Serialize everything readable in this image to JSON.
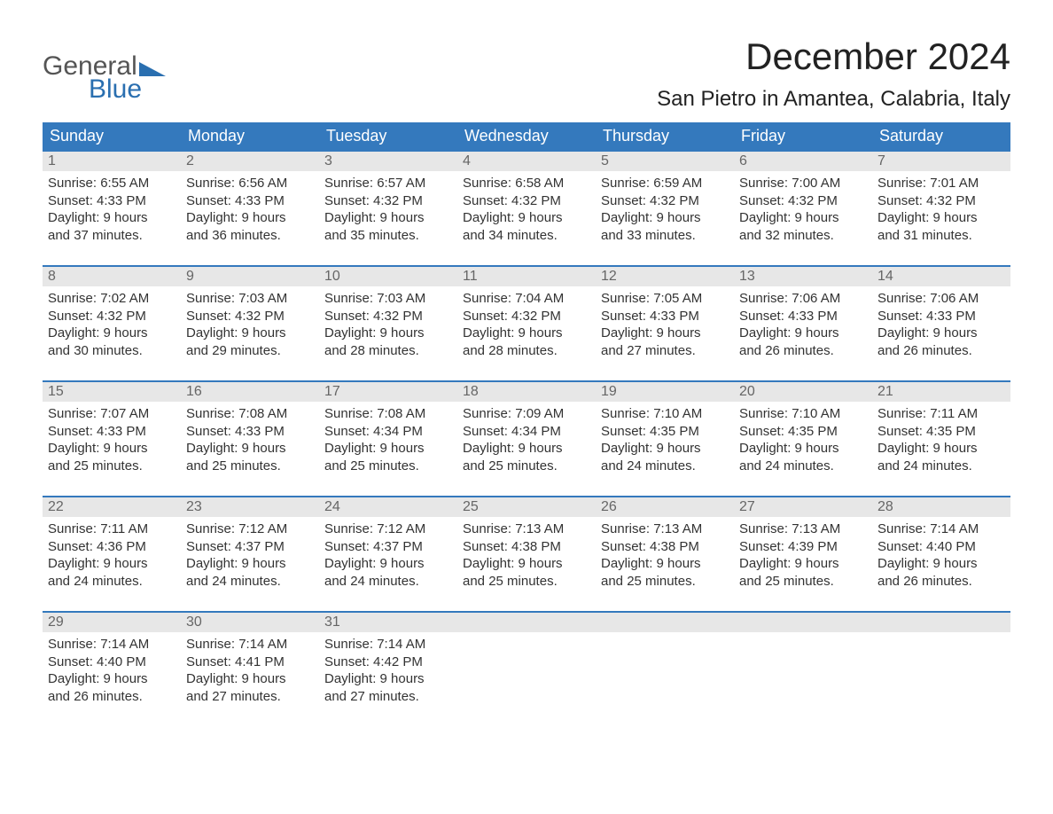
{
  "logo": {
    "word1": "General",
    "word2": "Blue",
    "accent_color": "#2a6fb0",
    "text_color": "#555555"
  },
  "title": "December 2024",
  "location": "San Pietro in Amantea, Calabria, Italy",
  "colors": {
    "header_bg": "#3479bd",
    "header_text": "#ffffff",
    "week_top_border": "#3479bd",
    "daynum_bg": "#e7e7e7",
    "daynum_text": "#666666",
    "body_text": "#333333",
    "page_bg": "#ffffff"
  },
  "fonts": {
    "title_size": 42,
    "location_size": 24,
    "dow_size": 18,
    "daynum_size": 16,
    "body_size": 15
  },
  "days_of_week": [
    "Sunday",
    "Monday",
    "Tuesday",
    "Wednesday",
    "Thursday",
    "Friday",
    "Saturday"
  ],
  "weeks": [
    [
      {
        "n": "1",
        "sunrise": "Sunrise: 6:55 AM",
        "sunset": "Sunset: 4:33 PM",
        "d1": "Daylight: 9 hours",
        "d2": "and 37 minutes."
      },
      {
        "n": "2",
        "sunrise": "Sunrise: 6:56 AM",
        "sunset": "Sunset: 4:33 PM",
        "d1": "Daylight: 9 hours",
        "d2": "and 36 minutes."
      },
      {
        "n": "3",
        "sunrise": "Sunrise: 6:57 AM",
        "sunset": "Sunset: 4:32 PM",
        "d1": "Daylight: 9 hours",
        "d2": "and 35 minutes."
      },
      {
        "n": "4",
        "sunrise": "Sunrise: 6:58 AM",
        "sunset": "Sunset: 4:32 PM",
        "d1": "Daylight: 9 hours",
        "d2": "and 34 minutes."
      },
      {
        "n": "5",
        "sunrise": "Sunrise: 6:59 AM",
        "sunset": "Sunset: 4:32 PM",
        "d1": "Daylight: 9 hours",
        "d2": "and 33 minutes."
      },
      {
        "n": "6",
        "sunrise": "Sunrise: 7:00 AM",
        "sunset": "Sunset: 4:32 PM",
        "d1": "Daylight: 9 hours",
        "d2": "and 32 minutes."
      },
      {
        "n": "7",
        "sunrise": "Sunrise: 7:01 AM",
        "sunset": "Sunset: 4:32 PM",
        "d1": "Daylight: 9 hours",
        "d2": "and 31 minutes."
      }
    ],
    [
      {
        "n": "8",
        "sunrise": "Sunrise: 7:02 AM",
        "sunset": "Sunset: 4:32 PM",
        "d1": "Daylight: 9 hours",
        "d2": "and 30 minutes."
      },
      {
        "n": "9",
        "sunrise": "Sunrise: 7:03 AM",
        "sunset": "Sunset: 4:32 PM",
        "d1": "Daylight: 9 hours",
        "d2": "and 29 minutes."
      },
      {
        "n": "10",
        "sunrise": "Sunrise: 7:03 AM",
        "sunset": "Sunset: 4:32 PM",
        "d1": "Daylight: 9 hours",
        "d2": "and 28 minutes."
      },
      {
        "n": "11",
        "sunrise": "Sunrise: 7:04 AM",
        "sunset": "Sunset: 4:32 PM",
        "d1": "Daylight: 9 hours",
        "d2": "and 28 minutes."
      },
      {
        "n": "12",
        "sunrise": "Sunrise: 7:05 AM",
        "sunset": "Sunset: 4:33 PM",
        "d1": "Daylight: 9 hours",
        "d2": "and 27 minutes."
      },
      {
        "n": "13",
        "sunrise": "Sunrise: 7:06 AM",
        "sunset": "Sunset: 4:33 PM",
        "d1": "Daylight: 9 hours",
        "d2": "and 26 minutes."
      },
      {
        "n": "14",
        "sunrise": "Sunrise: 7:06 AM",
        "sunset": "Sunset: 4:33 PM",
        "d1": "Daylight: 9 hours",
        "d2": "and 26 minutes."
      }
    ],
    [
      {
        "n": "15",
        "sunrise": "Sunrise: 7:07 AM",
        "sunset": "Sunset: 4:33 PM",
        "d1": "Daylight: 9 hours",
        "d2": "and 25 minutes."
      },
      {
        "n": "16",
        "sunrise": "Sunrise: 7:08 AM",
        "sunset": "Sunset: 4:33 PM",
        "d1": "Daylight: 9 hours",
        "d2": "and 25 minutes."
      },
      {
        "n": "17",
        "sunrise": "Sunrise: 7:08 AM",
        "sunset": "Sunset: 4:34 PM",
        "d1": "Daylight: 9 hours",
        "d2": "and 25 minutes."
      },
      {
        "n": "18",
        "sunrise": "Sunrise: 7:09 AM",
        "sunset": "Sunset: 4:34 PM",
        "d1": "Daylight: 9 hours",
        "d2": "and 25 minutes."
      },
      {
        "n": "19",
        "sunrise": "Sunrise: 7:10 AM",
        "sunset": "Sunset: 4:35 PM",
        "d1": "Daylight: 9 hours",
        "d2": "and 24 minutes."
      },
      {
        "n": "20",
        "sunrise": "Sunrise: 7:10 AM",
        "sunset": "Sunset: 4:35 PM",
        "d1": "Daylight: 9 hours",
        "d2": "and 24 minutes."
      },
      {
        "n": "21",
        "sunrise": "Sunrise: 7:11 AM",
        "sunset": "Sunset: 4:35 PM",
        "d1": "Daylight: 9 hours",
        "d2": "and 24 minutes."
      }
    ],
    [
      {
        "n": "22",
        "sunrise": "Sunrise: 7:11 AM",
        "sunset": "Sunset: 4:36 PM",
        "d1": "Daylight: 9 hours",
        "d2": "and 24 minutes."
      },
      {
        "n": "23",
        "sunrise": "Sunrise: 7:12 AM",
        "sunset": "Sunset: 4:37 PM",
        "d1": "Daylight: 9 hours",
        "d2": "and 24 minutes."
      },
      {
        "n": "24",
        "sunrise": "Sunrise: 7:12 AM",
        "sunset": "Sunset: 4:37 PM",
        "d1": "Daylight: 9 hours",
        "d2": "and 24 minutes."
      },
      {
        "n": "25",
        "sunrise": "Sunrise: 7:13 AM",
        "sunset": "Sunset: 4:38 PM",
        "d1": "Daylight: 9 hours",
        "d2": "and 25 minutes."
      },
      {
        "n": "26",
        "sunrise": "Sunrise: 7:13 AM",
        "sunset": "Sunset: 4:38 PM",
        "d1": "Daylight: 9 hours",
        "d2": "and 25 minutes."
      },
      {
        "n": "27",
        "sunrise": "Sunrise: 7:13 AM",
        "sunset": "Sunset: 4:39 PM",
        "d1": "Daylight: 9 hours",
        "d2": "and 25 minutes."
      },
      {
        "n": "28",
        "sunrise": "Sunrise: 7:14 AM",
        "sunset": "Sunset: 4:40 PM",
        "d1": "Daylight: 9 hours",
        "d2": "and 26 minutes."
      }
    ],
    [
      {
        "n": "29",
        "sunrise": "Sunrise: 7:14 AM",
        "sunset": "Sunset: 4:40 PM",
        "d1": "Daylight: 9 hours",
        "d2": "and 26 minutes."
      },
      {
        "n": "30",
        "sunrise": "Sunrise: 7:14 AM",
        "sunset": "Sunset: 4:41 PM",
        "d1": "Daylight: 9 hours",
        "d2": "and 27 minutes."
      },
      {
        "n": "31",
        "sunrise": "Sunrise: 7:14 AM",
        "sunset": "Sunset: 4:42 PM",
        "d1": "Daylight: 9 hours",
        "d2": "and 27 minutes."
      },
      {
        "empty": true
      },
      {
        "empty": true
      },
      {
        "empty": true
      },
      {
        "empty": true
      }
    ]
  ]
}
